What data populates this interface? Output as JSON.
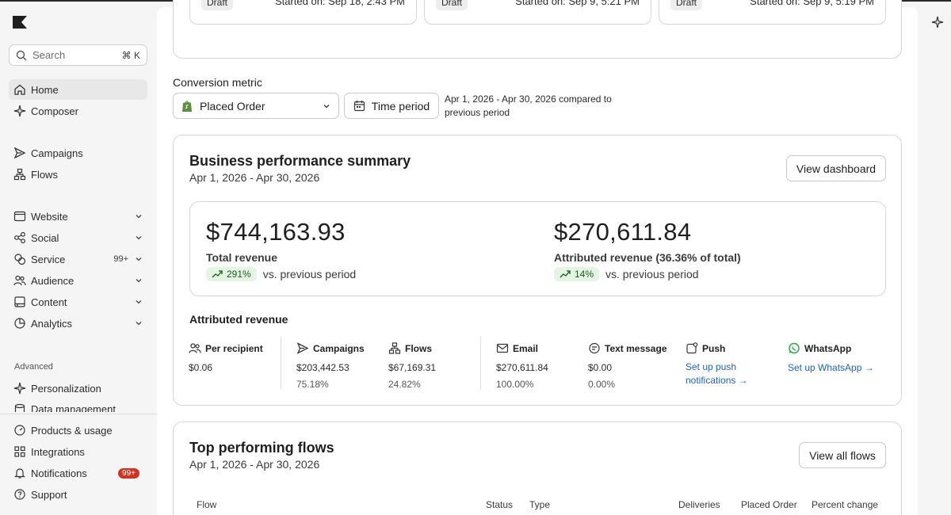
{
  "sidebar": {
    "search": {
      "placeholder": "Search",
      "shortcut": "⌘ K"
    },
    "items": [
      {
        "label": "Home",
        "icon": "home-icon"
      },
      {
        "label": "Composer",
        "icon": "sparkle-icon"
      },
      {
        "label": "Campaigns",
        "icon": "send-icon"
      },
      {
        "label": "Flows",
        "icon": "flows-icon"
      },
      {
        "label": "Website",
        "icon": "browser-icon"
      },
      {
        "label": "Social",
        "icon": "social-icon"
      },
      {
        "label": "Service",
        "icon": "service-icon",
        "count": "99+"
      },
      {
        "label": "Audience",
        "icon": "users-icon"
      },
      {
        "label": "Content",
        "icon": "content-icon"
      },
      {
        "label": "Analytics",
        "icon": "pie-chart-icon"
      }
    ],
    "advanced_label": "Advanced",
    "advanced_items": [
      {
        "label": "Personalization",
        "icon": "sparkle-icon"
      },
      {
        "label": "Data management",
        "icon": "database-icon"
      }
    ],
    "bottom_items": [
      {
        "label": "Products & usage",
        "icon": "gauge-icon"
      },
      {
        "label": "Integrations",
        "icon": "grid-icon"
      },
      {
        "label": "Notifications",
        "icon": "bell-icon",
        "badge": "99+"
      },
      {
        "label": "Support",
        "icon": "help-icon"
      }
    ]
  },
  "drafts": [
    {
      "status": "Draft",
      "started": "Started on: Sep 18, 2:43 PM"
    },
    {
      "status": "Draft",
      "started": "Started on: Sep 9, 5:21 PM"
    },
    {
      "status": "Draft",
      "started": "Started on: Sep 9, 5:19 PM"
    }
  ],
  "conversion": {
    "label": "Conversion metric",
    "metric": "Placed Order",
    "time_period_label": "Time period",
    "period_text": "Apr 1, 2026 - Apr 30, 2026 compared to previous period"
  },
  "summary": {
    "title": "Business performance summary",
    "date_range": "Apr 1, 2026 - Apr 30, 2026",
    "view_button": "View dashboard",
    "total_revenue": "$744,163.93",
    "total_label": "Total revenue",
    "total_change": "291%",
    "attributed_revenue": "$270,611.84",
    "attributed_label": "Attributed revenue (36.36% of total)",
    "attributed_change": "14%",
    "vs_text": "vs. previous period",
    "attributed_title": "Attributed revenue",
    "columns": [
      {
        "label": "Per recipient",
        "icon": "users-icon",
        "value": "$0.06",
        "pct": ""
      },
      {
        "label": "Campaigns",
        "icon": "send-icon",
        "value": "$203,442.53",
        "pct": "75.18%"
      },
      {
        "label": "Flows",
        "icon": "flows-icon",
        "value": "$67,169.31",
        "pct": "24.82%"
      },
      {
        "label": "Email",
        "icon": "mail-icon",
        "value": "$270,611.84",
        "pct": "100.00%"
      },
      {
        "label": "Text message",
        "icon": "chat-icon",
        "value": "$0.00",
        "pct": "0.00%"
      },
      {
        "label": "Push",
        "icon": "push-icon",
        "link": "Set up push notifications"
      },
      {
        "label": "WhatsApp",
        "icon": "whatsapp-icon",
        "link": "Set up WhatsApp"
      }
    ]
  },
  "flows": {
    "title": "Top performing flows",
    "date_range": "Apr 1, 2026 - Apr 30, 2026",
    "view_button": "View all flows",
    "columns": [
      "Flow",
      "Status",
      "Type",
      "Deliveries",
      "Placed Order",
      "Percent change"
    ]
  },
  "colors": {
    "accent_link": "#1d63c7",
    "positive_pill": "#e4f5e4",
    "badge_red": "#d2321f"
  }
}
